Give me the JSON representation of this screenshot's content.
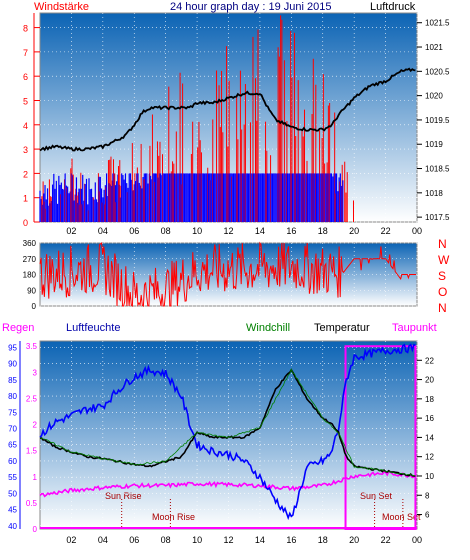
{
  "title": "24 hour graph day : 19 Juni 2015",
  "colors": {
    "frame": "#888888",
    "grid": "#ffffff",
    "red": "#ff0000",
    "blue": "#0000ff",
    "black": "#000000",
    "green": "#008000",
    "magenta": "#ff00ff",
    "darkred": "#aa0000",
    "navy": "#000080",
    "bgTop": "#0b63b4",
    "bgBottom": "#ffffff"
  },
  "hour_labels": [
    "02",
    "04",
    "06",
    "08",
    "10",
    "12",
    "14",
    "16",
    "18",
    "20",
    "22",
    "00"
  ],
  "chart_data": [
    {
      "type": "line",
      "panel": "wind_pressure",
      "left_axis_label": "Windstärke",
      "right_axis_label": "Luftdruck",
      "left_ticks": [
        "0",
        "1",
        "2",
        "3",
        "4",
        "5",
        "6",
        "7",
        "8"
      ],
      "right_ticks": [
        "1017.5",
        "1018",
        "1018.5",
        "1019",
        "1019.5",
        "1020",
        "1020.5",
        "1021",
        "1021.5"
      ],
      "ylim_left": [
        0,
        8.6
      ],
      "ylim_right": [
        1017.4,
        1021.7
      ],
      "series": [
        {
          "name": "Luftdruck",
          "x": [
            0,
            1,
            2,
            3,
            4,
            5,
            5.5,
            6,
            6.5,
            7,
            8,
            9,
            9.5,
            10,
            11,
            12,
            13,
            14,
            14.5,
            15,
            16,
            17,
            18,
            18.6,
            19,
            20,
            21,
            22,
            23,
            24
          ],
          "y": [
            1018.9,
            1018.95,
            1018.9,
            1018.9,
            1018.95,
            1019.1,
            1019.2,
            1019.4,
            1019.65,
            1019.75,
            1019.75,
            1019.75,
            1019.75,
            1019.85,
            1019.85,
            1019.95,
            1020.05,
            1020.05,
            1019.75,
            1019.5,
            1019.35,
            1019.3,
            1019.3,
            1019.4,
            1019.6,
            1019.95,
            1020.2,
            1020.3,
            1020.5,
            1020.55
          ]
        },
        {
          "name": "Windstärke",
          "x": [
            0,
            1,
            2,
            3,
            4,
            5,
            6,
            7,
            8,
            9,
            10,
            11,
            12,
            13,
            14,
            15,
            16,
            17,
            18,
            19,
            20,
            21,
            22,
            23,
            24
          ],
          "y": [
            1,
            1,
            1.5,
            1,
            1.5,
            1.5,
            2,
            2.5,
            3,
            3.5,
            3.5,
            4,
            4,
            4.5,
            5,
            5,
            5,
            4.5,
            4,
            2,
            1,
            1,
            1,
            1.5,
            1
          ]
        }
      ]
    },
    {
      "type": "scatter",
      "panel": "wind_direction",
      "left_ticks": [
        "0",
        "90",
        "180",
        "270",
        "360"
      ],
      "right_labels": [
        "N",
        "W",
        "S",
        "O",
        "N"
      ],
      "ylim": [
        0,
        360
      ],
      "series": [
        {
          "name": "",
          "x": [
            0,
            2,
            4,
            6,
            8,
            10,
            12,
            14,
            16,
            18,
            19.3,
            20,
            22,
            23
          ],
          "y": [
            180,
            200,
            220,
            60,
            90,
            200,
            210,
            220,
            230,
            200,
            190,
            270,
            270,
            150
          ]
        }
      ]
    },
    {
      "type": "line",
      "panel": "temp_humidity",
      "legend": [
        "Regen",
        "Luftfeuchte",
        "Windchill",
        "Temperatur",
        "Taupunkt"
      ],
      "left_ticks_rain": [
        "0",
        "0.5",
        "1",
        "1.5",
        "2",
        "2.5",
        "3",
        "3.5"
      ],
      "left_ticks_humidity": [
        "40",
        "45",
        "50",
        "55",
        "60",
        "65",
        "70",
        "75",
        "80",
        "85",
        "90",
        "95"
      ],
      "right_ticks": [
        "6",
        "8",
        "10",
        "12",
        "14",
        "16",
        "18",
        "20",
        "22"
      ],
      "ylim_humidity": [
        39,
        97
      ],
      "ylim_temp": [
        4.5,
        24
      ],
      "annotations": [
        "Sun Rise",
        "Moon Rise",
        "Sun Set",
        "Moon Set"
      ],
      "series": [
        {
          "name": "Luftfeuchte",
          "x": [
            0,
            1,
            2,
            3,
            4,
            5,
            6,
            7,
            8,
            9,
            9.5,
            10,
            11,
            12,
            13,
            14,
            15,
            16,
            17,
            18,
            18.5,
            19,
            19.5,
            20,
            22,
            24
          ],
          "y": [
            68,
            72,
            74,
            76,
            77,
            82,
            86,
            88,
            87,
            80,
            72,
            65,
            63,
            62,
            60,
            55,
            48,
            42,
            58,
            60,
            62,
            70,
            85,
            92,
            94,
            95
          ]
        },
        {
          "name": "Temperatur",
          "x": [
            0,
            1,
            2,
            3,
            4,
            5,
            6,
            7,
            8,
            9,
            10,
            11,
            12,
            13,
            14,
            15,
            16,
            17,
            18,
            18.5,
            19,
            19.5,
            20,
            22,
            24
          ],
          "y": [
            14,
            13,
            12.5,
            12,
            11.8,
            11.5,
            11.2,
            11,
            11.5,
            12,
            14.5,
            14,
            14,
            14,
            15,
            19,
            21,
            18,
            16,
            15.5,
            14.5,
            12,
            11,
            10.5,
            10
          ]
        },
        {
          "name": "Taupunkt",
          "x": [
            0,
            2,
            4,
            6,
            8,
            10,
            12,
            14,
            16,
            18,
            19,
            20,
            22,
            24
          ],
          "y": [
            8,
            8.5,
            8.8,
            9,
            9,
            9.2,
            9.1,
            9,
            8.7,
            9,
            9.5,
            10,
            10.3,
            10
          ]
        },
        {
          "name": "Windchill",
          "x": [
            0,
            2,
            4,
            6,
            8,
            10,
            12,
            14,
            16,
            18,
            19,
            20,
            22,
            24
          ],
          "y": [
            14,
            12.5,
            11.8,
            11.2,
            11.5,
            14.5,
            14,
            15,
            21,
            16,
            14.5,
            11,
            10.5,
            10
          ]
        },
        {
          "name": "Regen",
          "x": [
            0,
            19.4,
            19.5,
            23.9,
            24
          ],
          "y": [
            0,
            0,
            3.5,
            3.5,
            0
          ]
        }
      ]
    }
  ]
}
